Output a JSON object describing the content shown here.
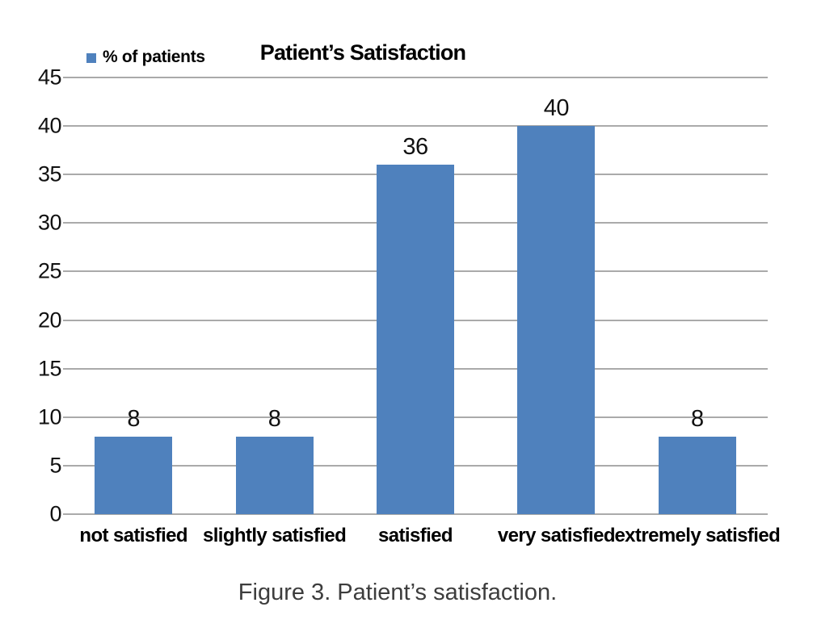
{
  "header": {
    "legend_label": "% of patients",
    "title": "Patient’s Satisfaction"
  },
  "caption_text": "Figure 3. Patient’s satisfaction.",
  "colors": {
    "bar": "#4f81bd",
    "gridline": "#aaaaaa",
    "title_text": "#000000",
    "caption_text": "#3d3d3d"
  },
  "chart_data": {
    "type": "bar",
    "title": "Patient’s Satisfaction",
    "series_name": "% of patients",
    "categories": [
      "not satisfied",
      "slightly satisfied",
      "satisfied",
      "very satisfied",
      "extremely satisfied"
    ],
    "values": [
      8,
      8,
      36,
      40,
      8
    ],
    "data_labels": [
      8,
      8,
      36,
      40,
      8
    ],
    "xlabel": "",
    "ylabel": "",
    "ylim": [
      0,
      45
    ],
    "ytick_step": 5,
    "ytick_labels": [
      "0",
      "5",
      "10",
      "15",
      "20",
      "25",
      "30",
      "35",
      "40",
      "45"
    ],
    "grid": true,
    "legend_position": "top-left"
  }
}
